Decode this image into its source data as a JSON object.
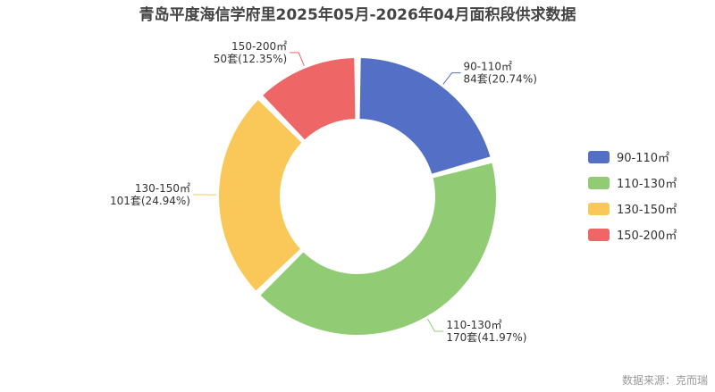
{
  "chart_data": {
    "type": "pie",
    "title": "青岛平度海信学府里2025年05月-2026年04月面积段供求数据",
    "categories": [
      "90-110㎡",
      "110-130㎡",
      "130-150㎡",
      "150-200㎡"
    ],
    "values": [
      84,
      170,
      101,
      50
    ],
    "unit": "套",
    "percent_labels": [
      "84套(20.74%)",
      "170套(41.97%)",
      "101套(24.94%)",
      "50套(12.35%)"
    ],
    "colors": [
      "#5470c6",
      "#91cc75",
      "#fac858",
      "#ee6666"
    ],
    "donut": true,
    "legend_position": "right"
  },
  "source": "数据来源：克而瑞"
}
